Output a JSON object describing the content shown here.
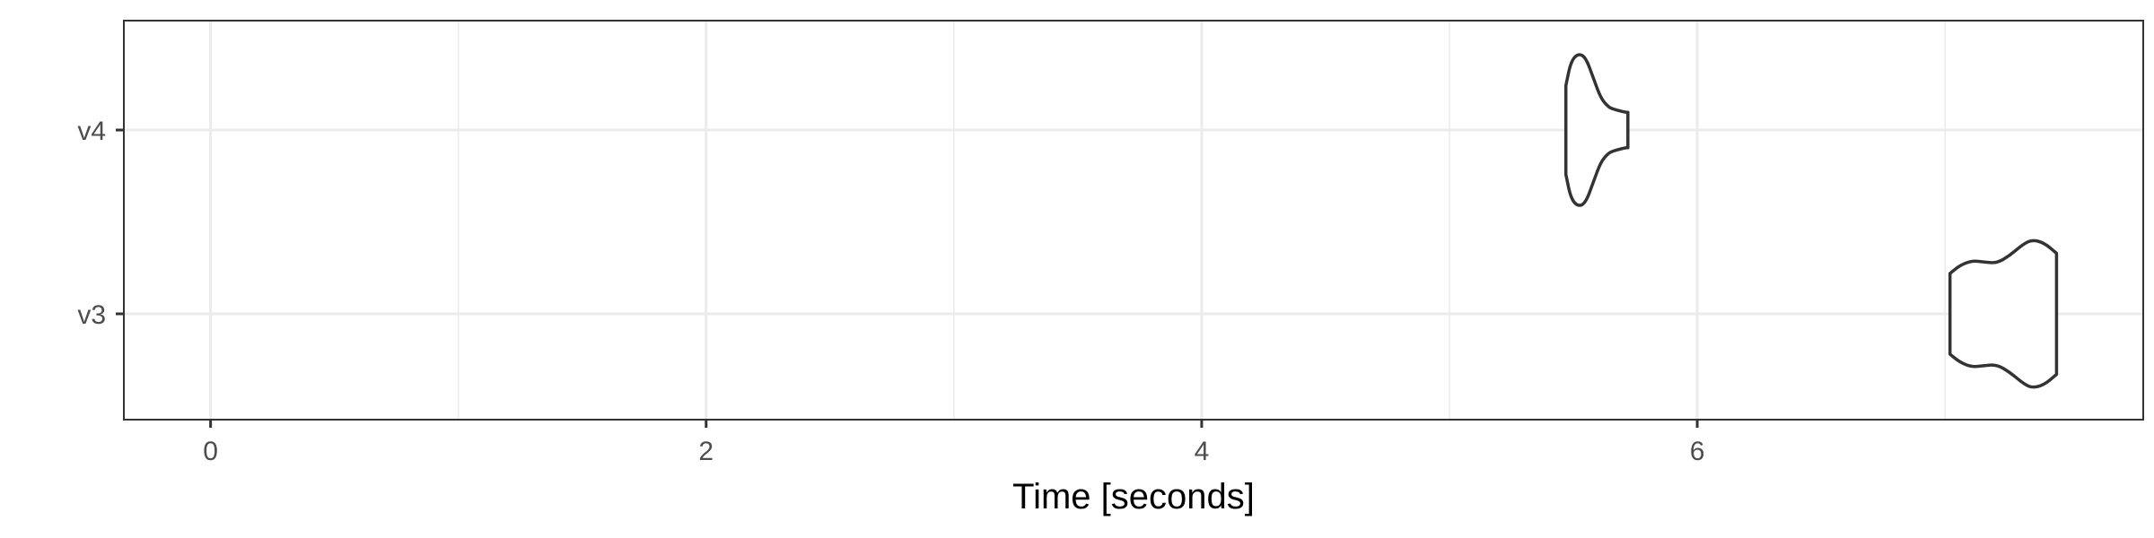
{
  "chart_data": {
    "type": "violin",
    "xlabel": "Time [seconds]",
    "ylabel": "",
    "xlim": [
      -0.35,
      7.8
    ],
    "x_ticks": [
      0,
      2,
      4,
      6
    ],
    "x_minor_ticks": [
      1,
      3,
      5,
      7
    ],
    "categories": [
      "v3",
      "v4"
    ],
    "grid": "major and minor, light grey",
    "legend": "none",
    "series": [
      {
        "category": "v4",
        "x_min": 5.47,
        "x_max": 5.72,
        "density_profile": [
          [
            5.47,
            0.55
          ],
          [
            5.49,
            0.85
          ],
          [
            5.52,
            0.95
          ],
          [
            5.55,
            0.9
          ],
          [
            5.58,
            0.65
          ],
          [
            5.61,
            0.4
          ],
          [
            5.64,
            0.29
          ],
          [
            5.66,
            0.26
          ],
          [
            5.71,
            0.22
          ],
          [
            5.72,
            0.22
          ]
        ]
      },
      {
        "category": "v3",
        "x_min": 7.02,
        "x_max": 7.45,
        "density_profile": [
          [
            7.02,
            0.5
          ],
          [
            7.06,
            0.6
          ],
          [
            7.11,
            0.66
          ],
          [
            7.16,
            0.64
          ],
          [
            7.21,
            0.63
          ],
          [
            7.26,
            0.72
          ],
          [
            7.31,
            0.85
          ],
          [
            7.35,
            0.92
          ],
          [
            7.4,
            0.88
          ],
          [
            7.45,
            0.75
          ]
        ]
      }
    ]
  }
}
